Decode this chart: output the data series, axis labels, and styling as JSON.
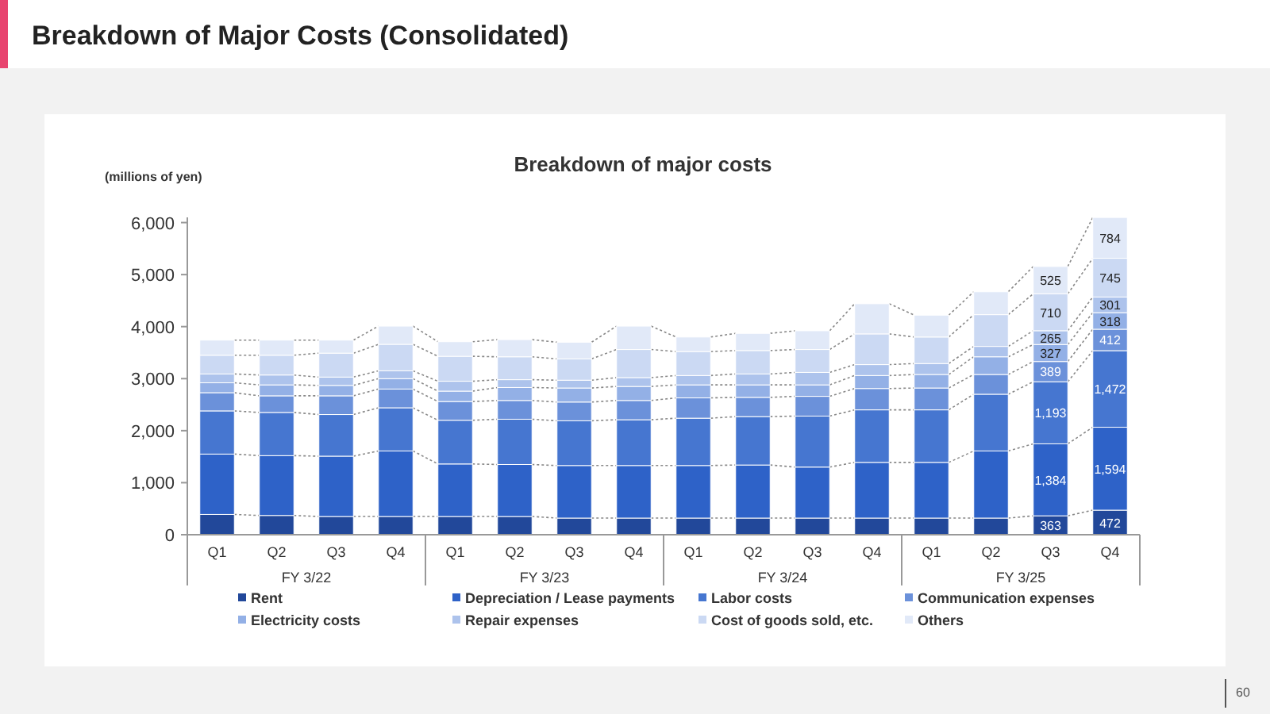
{
  "chart_data": {
    "type": "bar",
    "stacked": true,
    "title": "Breakdown of Major Costs (Consolidated)",
    "subtitle": "Breakdown of major costs",
    "ylabel": "(millions of yen)",
    "categories": [
      "Q1",
      "Q2",
      "Q3",
      "Q4",
      "Q1",
      "Q2",
      "Q3",
      "Q4",
      "Q1",
      "Q2",
      "Q3",
      "Q4",
      "Q1",
      "Q2",
      "Q3",
      "Q4"
    ],
    "annotations": [
      "FY 3/22",
      "FY 3/23",
      "FY 3/24",
      "FY 3/25",
      "60"
    ],
    "ylim": [
      0,
      6100
    ],
    "yticks": [
      0,
      {
        "value": 1000,
        "label": "1,000"
      },
      {
        "value": 2000,
        "label": "2,000"
      },
      {
        "value": 3000,
        "label": "3,000"
      },
      {
        "value": 4000,
        "label": "4,000"
      },
      {
        "value": 5000,
        "label": "5,000"
      },
      {
        "value": 6000,
        "label": "6,000"
      }
    ],
    "grid": false,
    "legend": "bottom",
    "series": [
      {
        "name": "Rent",
        "color": "#22489a",
        "values": [
          390,
          370,
          350,
          350,
          350,
          350,
          320,
          320,
          320,
          320,
          320,
          320,
          320,
          320,
          363,
          472
        ],
        "value_labels": [
          null,
          null,
          null,
          null,
          null,
          null,
          null,
          null,
          null,
          null,
          null,
          null,
          null,
          null,
          "363",
          "472"
        ]
      },
      {
        "name": "Depreciation / Lease payments",
        "color": "#2e62c8",
        "values": [
          1160,
          1150,
          1160,
          1260,
          1010,
          1000,
          1010,
          1010,
          1010,
          1020,
          980,
          1070,
          1070,
          1290,
          1384,
          1594
        ],
        "value_labels": [
          null,
          null,
          null,
          null,
          null,
          null,
          null,
          null,
          null,
          null,
          null,
          null,
          null,
          null,
          "1,384",
          "1,594"
        ]
      },
      {
        "name": "Labor costs",
        "color": "#4676d0",
        "values": [
          830,
          830,
          800,
          830,
          840,
          870,
          860,
          880,
          910,
          930,
          980,
          1010,
          1010,
          1090,
          1193,
          1472
        ],
        "value_labels": [
          null,
          null,
          null,
          null,
          null,
          null,
          null,
          null,
          null,
          null,
          null,
          null,
          null,
          null,
          "1,193",
          "1,472"
        ]
      },
      {
        "name": "Communication expenses",
        "color": "#6b91da",
        "values": [
          350,
          320,
          360,
          360,
          360,
          360,
          360,
          370,
          390,
          370,
          380,
          410,
          420,
          380,
          389,
          412
        ],
        "value_labels": [
          null,
          null,
          null,
          null,
          null,
          null,
          null,
          null,
          null,
          null,
          null,
          null,
          null,
          null,
          "389",
          "412"
        ]
      },
      {
        "name": "Electricity costs",
        "color": "#93b0e6",
        "values": [
          190,
          210,
          200,
          200,
          200,
          250,
          270,
          270,
          250,
          240,
          220,
          250,
          260,
          340,
          327,
          318
        ],
        "value_labels": [
          null,
          null,
          null,
          null,
          null,
          null,
          null,
          null,
          null,
          null,
          null,
          null,
          null,
          null,
          "327",
          "318"
        ]
      },
      {
        "name": "Repair expenses",
        "color": "#adc3ec",
        "values": [
          170,
          190,
          160,
          150,
          190,
          150,
          150,
          170,
          180,
          210,
          240,
          210,
          210,
          200,
          265,
          301
        ],
        "value_labels": [
          null,
          null,
          null,
          null,
          null,
          null,
          null,
          null,
          null,
          null,
          null,
          null,
          null,
          null,
          "265",
          "301"
        ]
      },
      {
        "name": "Cost of goods sold, etc.",
        "color": "#cbd9f3",
        "values": [
          360,
          380,
          460,
          510,
          480,
          440,
          410,
          540,
          460,
          450,
          440,
          590,
          510,
          610,
          710,
          745
        ],
        "value_labels": [
          null,
          null,
          null,
          null,
          null,
          null,
          null,
          null,
          null,
          null,
          null,
          null,
          null,
          null,
          "710",
          "745"
        ]
      },
      {
        "name": "Others",
        "color": "#e1e9f8",
        "values": [
          290,
          290,
          250,
          350,
          280,
          330,
          320,
          450,
          280,
          330,
          360,
          580,
          420,
          440,
          525,
          784
        ],
        "value_labels": [
          null,
          null,
          null,
          null,
          null,
          null,
          null,
          null,
          null,
          null,
          null,
          null,
          null,
          null,
          "525",
          "784"
        ]
      }
    ]
  }
}
